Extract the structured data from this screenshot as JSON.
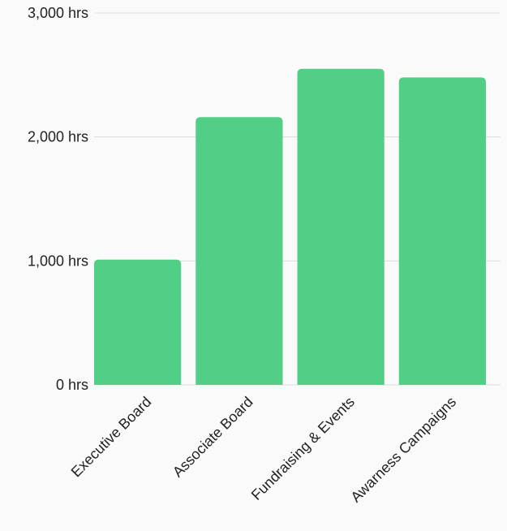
{
  "chart_data": {
    "type": "bar",
    "categories": [
      "Executive Board",
      "Associate Board",
      "Fundraising & Events",
      "Awarness Campaigns"
    ],
    "values": [
      1010,
      2160,
      2550,
      2480
    ],
    "ylim": [
      0,
      3000
    ],
    "yticks": [
      0,
      1000,
      2000,
      3000
    ],
    "ytick_labels": [
      "0 hrs",
      "1,000 hrs",
      "2,000 hrs",
      "3,000 hrs"
    ],
    "grid": true,
    "legend": "none",
    "bar_color": "#52cf87",
    "title": "",
    "xlabel": "",
    "ylabel": ""
  }
}
